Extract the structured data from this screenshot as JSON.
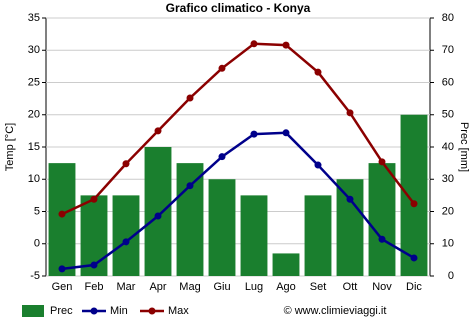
{
  "chart_data": {
    "type": "bar-line",
    "title": "Grafico climatico - Konya",
    "ylabel": "Temp [°C]",
    "y2label": "Prec [mm]",
    "source": "© www.climieviaggi.it",
    "categories": [
      "Gen",
      "Feb",
      "Mar",
      "Apr",
      "Mag",
      "Giu",
      "Lug",
      "Ago",
      "Set",
      "Ott",
      "Nov",
      "Dic"
    ],
    "series": [
      {
        "name": "Prec",
        "type": "bar",
        "axis": "y2",
        "color": "#1a7f2e",
        "values": [
          35,
          25,
          25,
          40,
          35,
          30,
          25,
          7,
          25,
          30,
          35,
          50
        ]
      },
      {
        "name": "Min",
        "type": "line",
        "color": "#00008b",
        "values": [
          -3.9,
          -3.3,
          0.3,
          4.3,
          9.0,
          13.5,
          17.0,
          17.2,
          12.2,
          6.9,
          0.7,
          -2.2
        ]
      },
      {
        "name": "Max",
        "type": "line",
        "color": "#8b0000",
        "values": [
          4.6,
          6.9,
          12.4,
          17.5,
          22.6,
          27.2,
          31.0,
          30.8,
          26.6,
          20.3,
          12.7,
          6.2
        ]
      }
    ],
    "ylim": [
      -5,
      35
    ],
    "yticks": [
      -5,
      0,
      5,
      10,
      15,
      20,
      25,
      30,
      35
    ],
    "y2lim": [
      0,
      80
    ],
    "y2ticks": [
      0,
      10,
      20,
      30,
      40,
      50,
      60,
      70,
      80
    ],
    "grid": true
  }
}
